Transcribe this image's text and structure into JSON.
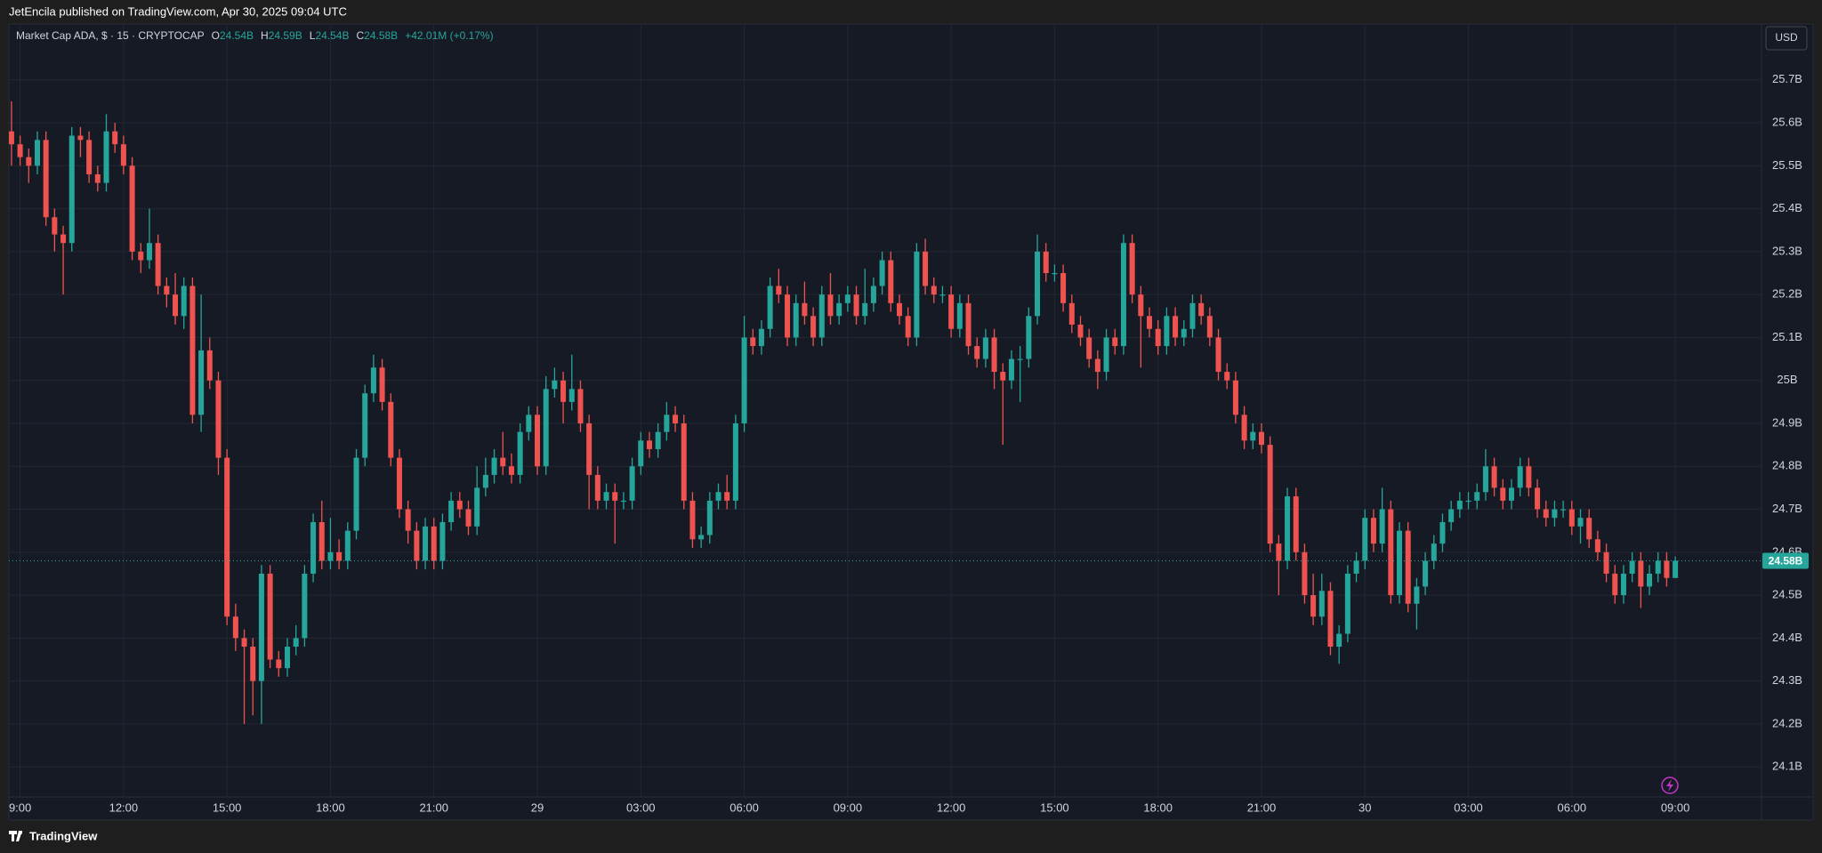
{
  "header": "JetEncila published on TradingView.com, Apr 30, 2025 09:04 UTC",
  "footer": "TradingView",
  "chart_data": {
    "type": "candlestick",
    "legend": {
      "symbol": "Market Cap ADA, $ · 15 · CRYPTOCAP",
      "ohlc": [
        {
          "key": "O",
          "value": "24.54B"
        },
        {
          "key": "H",
          "value": "24.59B"
        },
        {
          "key": "L",
          "value": "24.54B"
        },
        {
          "key": "C",
          "value": "24.58B"
        }
      ],
      "change": "+42.01M (+0.17%)"
    },
    "currency": "USD",
    "last_price": {
      "value": 24.58,
      "label": "24.58B"
    },
    "open": [
      25.58,
      25.55,
      25.52,
      25.5,
      25.56,
      25.38,
      25.34,
      25.32,
      25.57,
      25.56,
      25.48,
      25.46,
      25.58,
      25.55,
      25.5,
      25.3,
      25.28,
      25.32,
      25.22,
      25.2,
      25.15,
      25.22,
      24.92,
      25.07,
      25.0,
      24.82,
      24.45,
      24.4,
      24.38,
      24.3,
      24.55,
      24.35,
      24.33,
      24.38,
      24.4,
      24.55,
      24.67,
      24.58,
      24.6,
      24.58,
      24.65,
      24.82,
      24.97,
      25.03,
      24.95,
      24.82,
      24.7,
      24.65,
      24.58,
      24.66,
      24.58,
      24.67,
      24.72,
      24.7,
      24.66,
      24.75,
      24.78,
      24.82,
      24.8,
      24.78,
      24.88,
      24.92,
      24.8,
      24.98,
      25.0,
      24.95,
      24.98,
      24.9,
      24.78,
      24.72,
      24.74,
      24.72,
      24.72,
      24.8,
      24.86,
      24.84,
      24.88,
      24.92,
      24.9,
      24.72,
      24.63,
      24.64,
      24.72,
      24.74,
      24.72,
      24.9,
      25.1,
      25.08,
      25.12,
      25.22,
      25.2,
      25.1,
      25.18,
      25.15,
      25.1,
      25.2,
      25.15,
      25.18,
      25.2,
      25.15,
      25.18,
      25.22,
      25.28,
      25.18,
      25.15,
      25.1,
      25.3,
      25.22,
      25.2,
      25.2,
      25.12,
      25.18,
      25.08,
      25.05,
      25.1,
      25.02,
      25.0,
      25.05,
      25.05,
      25.15,
      25.3,
      25.25,
      25.25,
      25.18,
      25.13,
      25.1,
      25.05,
      25.02,
      25.1,
      25.08,
      25.32,
      25.2,
      25.15,
      25.12,
      25.08,
      25.15,
      25.1,
      25.12,
      25.18,
      25.15,
      25.1,
      25.02,
      25.0,
      24.92,
      24.86,
      24.88,
      24.85,
      24.62,
      24.58,
      24.73,
      24.6,
      24.5,
      24.45,
      24.51,
      24.38,
      24.41,
      24.55,
      24.58,
      24.68,
      24.62,
      24.7,
      24.5,
      24.65,
      24.48,
      24.52,
      24.58,
      24.62,
      24.67,
      24.7,
      24.72,
      24.72,
      24.74,
      24.8,
      24.75,
      24.72,
      24.75,
      24.8,
      24.75,
      24.7,
      24.68,
      24.7,
      24.7,
      24.66,
      24.68,
      24.63,
      24.6,
      24.55,
      24.5,
      24.55,
      24.58,
      24.52,
      24.55,
      24.58,
      24.54
    ],
    "high": [
      25.65,
      25.57,
      25.54,
      25.58,
      25.58,
      25.4,
      25.36,
      25.59,
      25.59,
      25.58,
      25.5,
      25.62,
      25.6,
      25.57,
      25.52,
      25.32,
      25.4,
      25.34,
      25.24,
      25.25,
      25.24,
      25.24,
      25.2,
      25.1,
      25.02,
      24.84,
      24.48,
      24.42,
      24.4,
      24.57,
      24.57,
      24.37,
      24.4,
      24.43,
      24.57,
      24.69,
      24.72,
      24.68,
      24.63,
      24.67,
      24.84,
      24.99,
      25.06,
      25.05,
      24.97,
      24.84,
      24.72,
      24.67,
      24.68,
      24.68,
      24.69,
      24.74,
      24.74,
      24.72,
      24.8,
      24.82,
      24.84,
      24.88,
      24.83,
      24.9,
      24.94,
      24.94,
      25.01,
      25.03,
      25.02,
      25.06,
      25.0,
      24.92,
      24.8,
      24.76,
      24.76,
      24.74,
      24.82,
      24.88,
      24.88,
      24.9,
      24.95,
      24.94,
      24.92,
      24.74,
      24.66,
      24.74,
      24.76,
      24.78,
      24.92,
      25.15,
      25.12,
      25.14,
      25.24,
      25.26,
      25.22,
      25.2,
      25.23,
      25.17,
      25.22,
      25.25,
      25.2,
      25.22,
      25.22,
      25.26,
      25.24,
      25.3,
      25.3,
      25.2,
      25.17,
      25.32,
      25.33,
      25.24,
      25.22,
      25.22,
      25.2,
      25.2,
      25.1,
      25.12,
      25.12,
      25.04,
      25.07,
      25.08,
      25.17,
      25.34,
      25.32,
      25.27,
      25.27,
      25.2,
      25.15,
      25.12,
      25.07,
      25.12,
      25.12,
      25.34,
      25.34,
      25.22,
      25.17,
      25.14,
      25.17,
      25.17,
      25.14,
      25.2,
      25.2,
      25.17,
      25.12,
      25.04,
      25.02,
      24.94,
      24.9,
      24.9,
      24.87,
      24.64,
      24.75,
      24.75,
      24.62,
      24.55,
      24.55,
      24.53,
      24.43,
      24.57,
      24.6,
      24.7,
      24.7,
      24.75,
      24.72,
      24.67,
      24.67,
      24.54,
      24.6,
      24.64,
      24.69,
      24.72,
      24.74,
      24.74,
      24.76,
      24.84,
      24.82,
      24.77,
      24.77,
      24.82,
      24.82,
      24.77,
      24.72,
      24.72,
      24.72,
      24.72,
      24.7,
      24.7,
      24.65,
      24.62,
      24.57,
      24.57,
      24.6,
      24.6,
      24.57,
      24.6,
      24.6,
      24.59
    ],
    "low": [
      25.5,
      25.5,
      25.46,
      25.48,
      25.36,
      25.3,
      25.2,
      25.3,
      25.52,
      25.46,
      25.44,
      25.44,
      25.53,
      25.48,
      25.28,
      25.25,
      25.26,
      25.2,
      25.17,
      25.13,
      25.12,
      24.9,
      24.88,
      24.98,
      24.78,
      24.43,
      24.37,
      24.2,
      24.22,
      24.2,
      24.33,
      24.31,
      24.31,
      24.36,
      24.38,
      24.53,
      24.56,
      24.56,
      24.56,
      24.56,
      24.63,
      24.8,
      24.95,
      24.93,
      24.8,
      24.68,
      24.62,
      24.56,
      24.56,
      24.56,
      24.56,
      24.65,
      24.68,
      24.64,
      24.64,
      24.73,
      24.76,
      24.78,
      24.76,
      24.76,
      24.86,
      24.78,
      24.78,
      24.96,
      24.9,
      24.93,
      24.88,
      24.7,
      24.7,
      24.7,
      24.62,
      24.7,
      24.7,
      24.78,
      24.82,
      24.82,
      24.86,
      24.88,
      24.7,
      24.61,
      24.61,
      24.62,
      24.7,
      24.7,
      24.7,
      24.88,
      25.06,
      25.06,
      25.1,
      25.18,
      25.08,
      25.08,
      25.13,
      25.08,
      25.08,
      25.13,
      25.13,
      25.16,
      25.13,
      25.13,
      25.16,
      25.2,
      25.16,
      25.13,
      25.08,
      25.08,
      25.2,
      25.18,
      25.18,
      25.1,
      25.1,
      25.06,
      25.03,
      25.03,
      24.98,
      24.85,
      24.98,
      24.95,
      25.03,
      25.13,
      25.23,
      25.23,
      25.16,
      25.11,
      25.08,
      25.03,
      24.98,
      25.0,
      25.06,
      25.06,
      25.18,
      25.03,
      25.1,
      25.06,
      25.06,
      25.08,
      25.08,
      25.1,
      25.13,
      25.08,
      25.0,
      24.98,
      24.9,
      24.84,
      24.84,
      24.83,
      24.6,
      24.5,
      24.56,
      24.58,
      24.48,
      24.43,
      24.43,
      24.36,
      24.34,
      24.39,
      24.53,
      24.56,
      24.6,
      24.6,
      24.48,
      24.48,
      24.46,
      24.42,
      24.5,
      24.56,
      24.6,
      24.65,
      24.68,
      24.7,
      24.7,
      24.72,
      24.73,
      24.7,
      24.7,
      24.73,
      24.73,
      24.68,
      24.66,
      24.66,
      24.68,
      24.64,
      24.62,
      24.61,
      24.58,
      24.53,
      24.48,
      24.48,
      24.53,
      24.47,
      24.5,
      24.53,
      24.52,
      24.54
    ],
    "close": [
      25.55,
      25.52,
      25.5,
      25.56,
      25.38,
      25.34,
      25.32,
      25.57,
      25.56,
      25.48,
      25.46,
      25.58,
      25.55,
      25.5,
      25.3,
      25.28,
      25.32,
      25.22,
      25.2,
      25.15,
      25.22,
      24.92,
      25.07,
      25.0,
      24.82,
      24.45,
      24.4,
      24.38,
      24.3,
      24.55,
      24.35,
      24.33,
      24.38,
      24.4,
      24.55,
      24.67,
      24.58,
      24.6,
      24.58,
      24.65,
      24.82,
      24.97,
      25.03,
      24.95,
      24.82,
      24.7,
      24.65,
      24.58,
      24.66,
      24.58,
      24.67,
      24.72,
      24.7,
      24.66,
      24.75,
      24.78,
      24.82,
      24.8,
      24.78,
      24.88,
      24.92,
      24.8,
      24.98,
      25.0,
      24.95,
      24.98,
      24.9,
      24.78,
      24.72,
      24.74,
      24.72,
      24.72,
      24.8,
      24.86,
      24.84,
      24.88,
      24.92,
      24.9,
      24.72,
      24.63,
      24.64,
      24.72,
      24.74,
      24.72,
      24.9,
      25.1,
      25.08,
      25.12,
      25.22,
      25.2,
      25.1,
      25.18,
      25.15,
      25.1,
      25.2,
      25.15,
      25.18,
      25.2,
      25.15,
      25.18,
      25.22,
      25.28,
      25.18,
      25.15,
      25.1,
      25.3,
      25.22,
      25.2,
      25.2,
      25.12,
      25.18,
      25.08,
      25.05,
      25.1,
      25.02,
      25.0,
      25.05,
      25.05,
      25.15,
      25.3,
      25.25,
      25.25,
      25.18,
      25.13,
      25.1,
      25.05,
      25.02,
      25.1,
      25.08,
      25.32,
      25.2,
      25.15,
      25.12,
      25.08,
      25.15,
      25.1,
      25.12,
      25.18,
      25.15,
      25.1,
      25.02,
      25.0,
      24.92,
      24.86,
      24.88,
      24.85,
      24.62,
      24.58,
      24.73,
      24.6,
      24.5,
      24.45,
      24.51,
      24.38,
      24.41,
      24.55,
      24.58,
      24.68,
      24.62,
      24.7,
      24.5,
      24.65,
      24.48,
      24.52,
      24.58,
      24.62,
      24.67,
      24.7,
      24.72,
      24.72,
      24.74,
      24.8,
      24.75,
      24.72,
      24.75,
      24.8,
      24.75,
      24.7,
      24.68,
      24.7,
      24.7,
      24.66,
      24.68,
      24.63,
      24.6,
      24.55,
      24.5,
      24.55,
      24.58,
      24.52,
      24.55,
      24.58,
      24.54,
      24.58
    ],
    "up_color": "#26a69a",
    "down_color": "#ef5350",
    "xlim": [
      -0.3,
      203
    ],
    "xticks": [
      {
        "value": 1,
        "label": "9:00"
      },
      {
        "value": 13,
        "label": "12:00"
      },
      {
        "value": 25,
        "label": "15:00"
      },
      {
        "value": 37,
        "label": "18:00"
      },
      {
        "value": 49,
        "label": "21:00"
      },
      {
        "value": 61,
        "label": "29"
      },
      {
        "value": 73,
        "label": "03:00"
      },
      {
        "value": 85,
        "label": "06:00"
      },
      {
        "value": 97,
        "label": "09:00"
      },
      {
        "value": 109,
        "label": "12:00"
      },
      {
        "value": 121,
        "label": "15:00"
      },
      {
        "value": 133,
        "label": "18:00"
      },
      {
        "value": 145,
        "label": "21:00"
      },
      {
        "value": 157,
        "label": "30"
      },
      {
        "value": 169,
        "label": "03:00"
      },
      {
        "value": 181,
        "label": "06:00"
      },
      {
        "value": 193,
        "label": "09:00"
      }
    ],
    "ylim": [
      24.03,
      25.83
    ],
    "yticks": [
      {
        "value": 24.1,
        "label": "24.1B"
      },
      {
        "value": 24.2,
        "label": "24.2B"
      },
      {
        "value": 24.3,
        "label": "24.3B"
      },
      {
        "value": 24.4,
        "label": "24.4B"
      },
      {
        "value": 24.5,
        "label": "24.5B"
      },
      {
        "value": 24.6,
        "label": "24.6B"
      },
      {
        "value": 24.7,
        "label": "24.7B"
      },
      {
        "value": 24.8,
        "label": "24.8B"
      },
      {
        "value": 24.9,
        "label": "24.9B"
      },
      {
        "value": 25,
        "label": "25B"
      },
      {
        "value": 25.1,
        "label": "25.1B"
      },
      {
        "value": 25.2,
        "label": "25.2B"
      },
      {
        "value": 25.3,
        "label": "25.3B"
      },
      {
        "value": 25.4,
        "label": "25.4B"
      },
      {
        "value": 25.5,
        "label": "25.5B"
      },
      {
        "value": 25.6,
        "label": "25.6B"
      },
      {
        "value": 25.7,
        "label": "25.7B"
      }
    ],
    "grid": true
  }
}
